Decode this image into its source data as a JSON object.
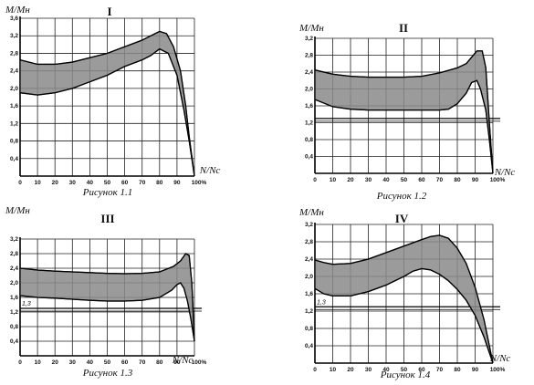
{
  "chart_data": [
    {
      "type": "area",
      "title": "I",
      "caption": "Рисунок 1.1",
      "ylabel": "M/Mн",
      "xlabel": "N/Nc",
      "x_ticks": [
        "0",
        "10",
        "20",
        "30",
        "40",
        "50",
        "60",
        "70",
        "80",
        "90",
        "100%"
      ],
      "y_ticks": [
        "0,4",
        "0,8",
        "1,2",
        "1,6",
        "2,0",
        "2,4",
        "2,8",
        "3,2",
        "3,6"
      ],
      "xlim": [
        0,
        100
      ],
      "ylim": [
        0,
        3.6
      ],
      "grid": true,
      "reference_line": null,
      "band": {
        "upper": [
          [
            0,
            2.65
          ],
          [
            10,
            2.55
          ],
          [
            20,
            2.55
          ],
          [
            30,
            2.6
          ],
          [
            40,
            2.7
          ],
          [
            50,
            2.8
          ],
          [
            60,
            2.95
          ],
          [
            70,
            3.1
          ],
          [
            75,
            3.2
          ],
          [
            80,
            3.3
          ],
          [
            84,
            3.25
          ],
          [
            88,
            2.95
          ],
          [
            92,
            2.4
          ],
          [
            95,
            1.6
          ],
          [
            97,
            0.9
          ],
          [
            100,
            0
          ]
        ],
        "lower": [
          [
            0,
            1.9
          ],
          [
            10,
            1.85
          ],
          [
            20,
            1.9
          ],
          [
            30,
            2.0
          ],
          [
            40,
            2.15
          ],
          [
            50,
            2.3
          ],
          [
            60,
            2.5
          ],
          [
            70,
            2.65
          ],
          [
            75,
            2.75
          ],
          [
            80,
            2.9
          ],
          [
            85,
            2.8
          ],
          [
            90,
            2.3
          ],
          [
            94,
            1.5
          ],
          [
            97,
            0.8
          ],
          [
            100,
            0
          ]
        ]
      }
    },
    {
      "type": "area",
      "title": "II",
      "caption": "Рисунок 1.2",
      "ylabel": "M/Mн",
      "xlabel": "N/Nc",
      "x_ticks": [
        "0",
        "10",
        "20",
        "30",
        "40",
        "50",
        "60",
        "70",
        "80",
        "90",
        "100%"
      ],
      "y_ticks": [
        "0,4",
        "0,8",
        "1,2",
        "1,6",
        "2,0",
        "2,4",
        "2,8",
        "3,2"
      ],
      "xlim": [
        0,
        100
      ],
      "ylim": [
        0,
        3.2
      ],
      "grid": true,
      "reference_line": 1.3,
      "reference_label": "",
      "band": {
        "upper": [
          [
            0,
            2.45
          ],
          [
            10,
            2.35
          ],
          [
            20,
            2.3
          ],
          [
            30,
            2.28
          ],
          [
            40,
            2.28
          ],
          [
            50,
            2.28
          ],
          [
            60,
            2.3
          ],
          [
            70,
            2.38
          ],
          [
            80,
            2.5
          ],
          [
            85,
            2.6
          ],
          [
            88,
            2.75
          ],
          [
            91,
            2.9
          ],
          [
            94,
            2.9
          ],
          [
            96,
            2.5
          ],
          [
            98,
            1.2
          ],
          [
            100,
            0
          ]
        ],
        "lower": [
          [
            0,
            1.75
          ],
          [
            10,
            1.58
          ],
          [
            20,
            1.52
          ],
          [
            30,
            1.5
          ],
          [
            40,
            1.5
          ],
          [
            50,
            1.5
          ],
          [
            60,
            1.5
          ],
          [
            70,
            1.5
          ],
          [
            75,
            1.52
          ],
          [
            80,
            1.65
          ],
          [
            85,
            1.9
          ],
          [
            88,
            2.15
          ],
          [
            91,
            2.2
          ],
          [
            93,
            2.0
          ],
          [
            96,
            1.5
          ],
          [
            98,
            0.8
          ],
          [
            100,
            0
          ]
        ]
      }
    },
    {
      "type": "area",
      "title": "III",
      "caption": "Рисунок 1.3",
      "ylabel": "M/Mн",
      "xlabel": "N/Nc",
      "x_ticks": [
        "0",
        "10",
        "20",
        "30",
        "40",
        "50",
        "60",
        "70",
        "80",
        "90",
        "100%"
      ],
      "y_ticks": [
        "0,4",
        "0,8",
        "1,2",
        "1,6",
        "2,0",
        "2,4",
        "2,8",
        "3,2"
      ],
      "xlim": [
        0,
        100
      ],
      "ylim": [
        0,
        3.2
      ],
      "grid": true,
      "reference_line": 1.3,
      "reference_label": "1,3",
      "band": {
        "upper": [
          [
            0,
            2.4
          ],
          [
            10,
            2.35
          ],
          [
            20,
            2.32
          ],
          [
            30,
            2.3
          ],
          [
            40,
            2.28
          ],
          [
            50,
            2.26
          ],
          [
            60,
            2.25
          ],
          [
            70,
            2.26
          ],
          [
            80,
            2.3
          ],
          [
            88,
            2.45
          ],
          [
            92,
            2.6
          ],
          [
            95,
            2.8
          ],
          [
            97,
            2.75
          ],
          [
            98.5,
            2.0
          ],
          [
            100,
            0.4
          ]
        ],
        "lower": [
          [
            0,
            1.65
          ],
          [
            10,
            1.6
          ],
          [
            20,
            1.58
          ],
          [
            30,
            1.55
          ],
          [
            40,
            1.52
          ],
          [
            50,
            1.5
          ],
          [
            60,
            1.5
          ],
          [
            70,
            1.52
          ],
          [
            80,
            1.6
          ],
          [
            87,
            1.8
          ],
          [
            90,
            1.95
          ],
          [
            92,
            2.0
          ],
          [
            94,
            1.85
          ],
          [
            96,
            1.5
          ],
          [
            98,
            1.0
          ],
          [
            100,
            0.4
          ]
        ]
      }
    },
    {
      "type": "area",
      "title": "IV",
      "caption": "Рисунок 1.4",
      "ylabel": "M/Mн",
      "xlabel": "N/Nc",
      "x_ticks": [
        "0",
        "10",
        "20",
        "30",
        "40",
        "50",
        "60",
        "70",
        "80",
        "90",
        "100%"
      ],
      "y_ticks": [
        "0,4",
        "0,8",
        "1,2",
        "1,6",
        "2,0",
        "2,4",
        "2,8",
        "3,2"
      ],
      "xlim": [
        0,
        100
      ],
      "ylim": [
        0,
        3.2
      ],
      "grid": true,
      "reference_line": 1.3,
      "reference_label": "1,3",
      "band": {
        "upper": [
          [
            0,
            2.38
          ],
          [
            5,
            2.32
          ],
          [
            10,
            2.28
          ],
          [
            20,
            2.3
          ],
          [
            30,
            2.4
          ],
          [
            40,
            2.55
          ],
          [
            50,
            2.7
          ],
          [
            60,
            2.85
          ],
          [
            65,
            2.92
          ],
          [
            70,
            2.95
          ],
          [
            75,
            2.88
          ],
          [
            80,
            2.65
          ],
          [
            85,
            2.3
          ],
          [
            90,
            1.75
          ],
          [
            95,
            1.0
          ],
          [
            100,
            0
          ]
        ],
        "lower": [
          [
            0,
            1.72
          ],
          [
            5,
            1.6
          ],
          [
            10,
            1.55
          ],
          [
            20,
            1.55
          ],
          [
            30,
            1.65
          ],
          [
            40,
            1.8
          ],
          [
            50,
            2.0
          ],
          [
            55,
            2.12
          ],
          [
            60,
            2.18
          ],
          [
            65,
            2.15
          ],
          [
            70,
            2.05
          ],
          [
            75,
            1.9
          ],
          [
            80,
            1.7
          ],
          [
            85,
            1.45
          ],
          [
            90,
            1.1
          ],
          [
            95,
            0.6
          ],
          [
            100,
            0
          ]
        ]
      }
    }
  ]
}
